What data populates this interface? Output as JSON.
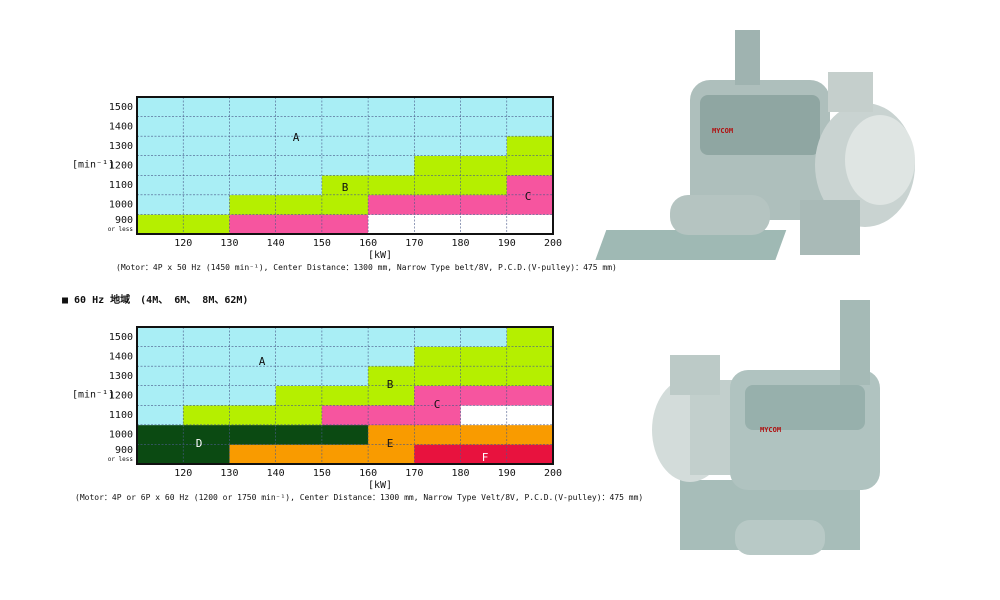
{
  "heading": "■ 60 Hz 地域　(4M、 6M、 8M、62M)",
  "photos": [
    {
      "label": "MYCOM"
    },
    {
      "label": "MYCOM"
    }
  ],
  "charts": [
    {
      "y_unit": "[min⁻¹]",
      "x_unit": "[kW]",
      "caption": "(Motor：4P x 50 Hz (1450 min⁻¹), Center Distance：1300 mm, Narrow Type belt/8V, P.C.D.(V-pulley)：475 mm)",
      "xlim": [
        110,
        200
      ],
      "xticks": [
        120,
        130,
        140,
        150,
        160,
        170,
        180,
        190,
        200
      ],
      "ylim": [
        850,
        1550
      ],
      "yticks": [
        900,
        1000,
        1100,
        1200,
        1300,
        1400,
        1500
      ],
      "ytick_note": "or less",
      "zones": [
        {
          "label": "A",
          "color": "#a9eef5"
        },
        {
          "label": "B",
          "color": "#b5ef00"
        },
        {
          "label": "C",
          "color": "#f6559f"
        }
      ],
      "cells": [
        [
          "B",
          "B",
          "C",
          "C",
          "C",
          null,
          null,
          null,
          null
        ],
        [
          "A",
          "A",
          "B",
          "B",
          "B",
          "C",
          "C",
          "C",
          "C"
        ],
        [
          "A",
          "A",
          "A",
          "A",
          "B",
          "B",
          "B",
          "B",
          "C"
        ],
        [
          "A",
          "A",
          "A",
          "A",
          "A",
          "A",
          "B",
          "B",
          "B"
        ],
        [
          "A",
          "A",
          "A",
          "A",
          "A",
          "A",
          "A",
          "A",
          "B"
        ],
        [
          "A",
          "A",
          "A",
          "A",
          "A",
          "A",
          "A",
          "A",
          "A"
        ],
        [
          "A",
          "A",
          "A",
          "A",
          "A",
          "A",
          "A",
          "A",
          "A"
        ]
      ]
    },
    {
      "y_unit": "[min⁻¹]",
      "x_unit": "[kW]",
      "caption": "(Motor：4P or 6P x 60 Hz (1200 or 1750 min⁻¹), Center Distance：1300 mm, Narrow Type Velt/8V, P.C.D.(V-pulley)：475 mm)",
      "xlim": [
        110,
        200
      ],
      "xticks": [
        120,
        130,
        140,
        150,
        160,
        170,
        180,
        190,
        200
      ],
      "ylim": [
        850,
        1550
      ],
      "yticks": [
        900,
        1000,
        1100,
        1200,
        1300,
        1400,
        1500
      ],
      "ytick_note": "or less",
      "zones": [
        {
          "label": "A",
          "color": "#a9eef5"
        },
        {
          "label": "B",
          "color": "#b5ef00"
        },
        {
          "label": "C",
          "color": "#f6559f"
        },
        {
          "label": "D",
          "color": "#0b4a12"
        },
        {
          "label": "E",
          "color": "#f99b00"
        },
        {
          "label": "F",
          "color": "#e8123e"
        }
      ],
      "cells": [
        [
          "D",
          "D",
          "E",
          "E",
          "E",
          "E",
          "F",
          "F",
          "F"
        ],
        [
          "D",
          "D",
          "D",
          "D",
          "D",
          "E",
          "E",
          "E",
          "E"
        ],
        [
          "A",
          "B",
          "B",
          "B",
          "C",
          "C",
          "C",
          null,
          null
        ],
        [
          "A",
          "A",
          "A",
          "B",
          "B",
          "B",
          "C",
          "C",
          "C"
        ],
        [
          "A",
          "A",
          "A",
          "A",
          "A",
          "B",
          "B",
          "B",
          "B"
        ],
        [
          "A",
          "A",
          "A",
          "A",
          "A",
          "A",
          "B",
          "B",
          "B"
        ],
        [
          "A",
          "A",
          "A",
          "A",
          "A",
          "A",
          "A",
          "A",
          "B"
        ]
      ]
    }
  ]
}
